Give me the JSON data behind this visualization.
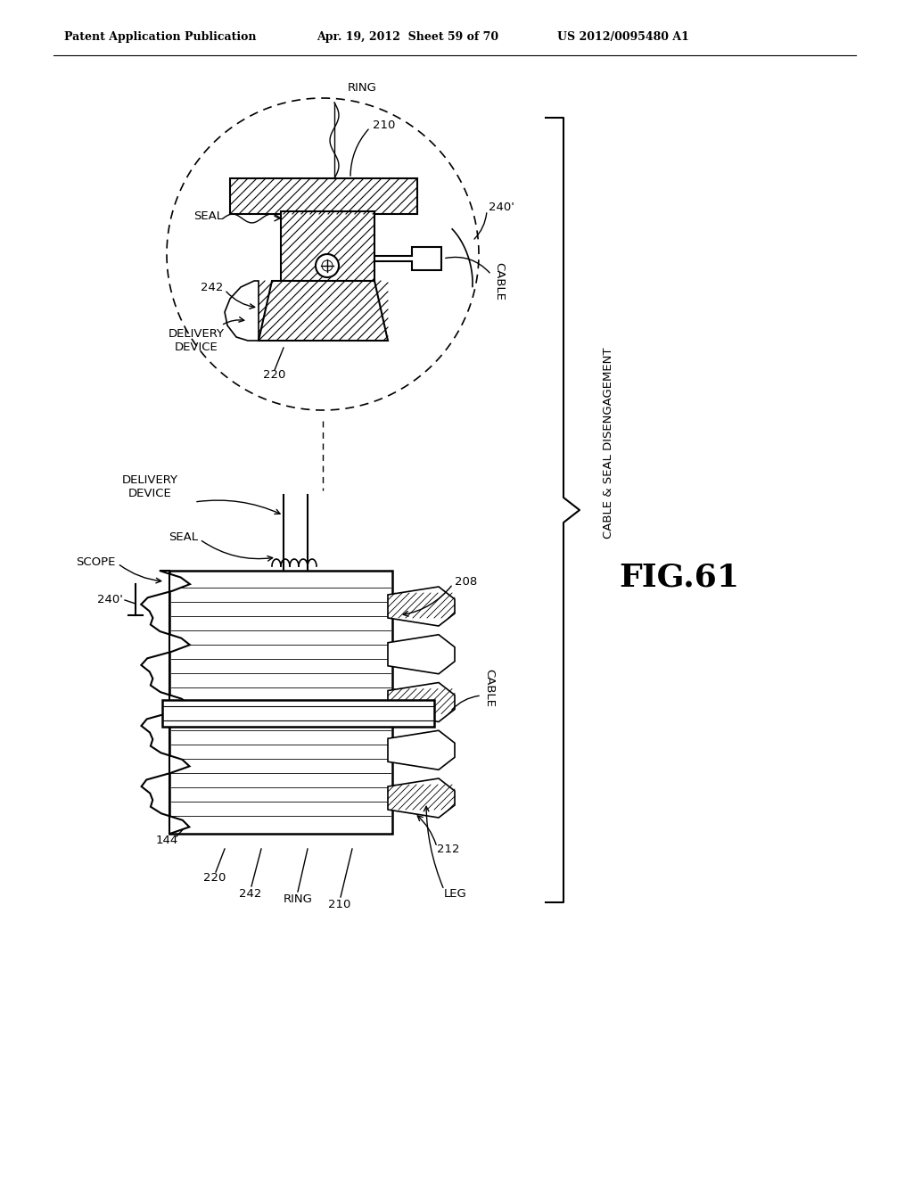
{
  "bg_color": "#ffffff",
  "header_left": "Patent Application Publication",
  "header_mid": "Apr. 19, 2012  Sheet 59 of 70",
  "header_right": "US 2012/0095480 A1",
  "fig_label": "FIG.61",
  "bracket_label": "CABLE & SEAL DISENGAGEMENT"
}
